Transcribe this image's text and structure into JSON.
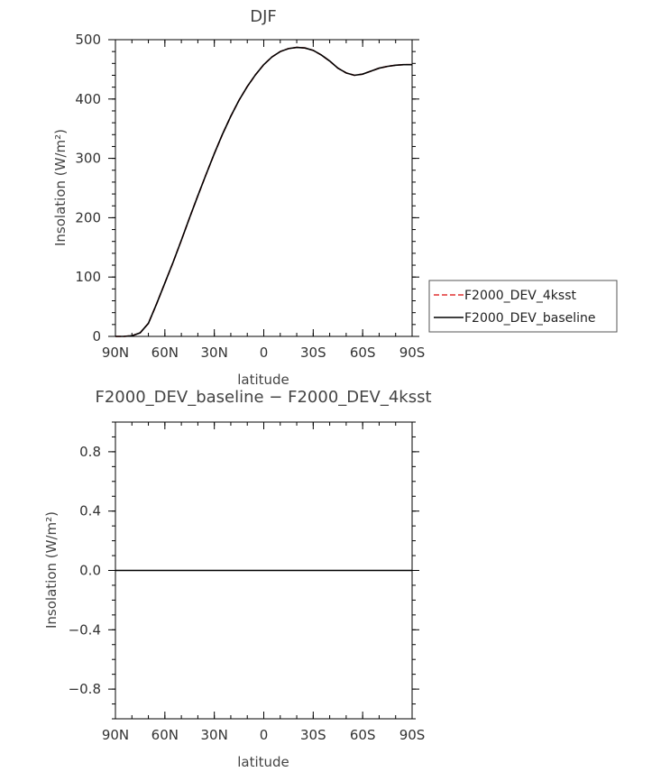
{
  "chart_data": [
    {
      "type": "line",
      "title": "DJF",
      "xlabel": "latitude",
      "ylabel": "Insolation (W/m²)",
      "xlim": [
        90,
        -90
      ],
      "ylim": [
        0,
        500
      ],
      "x_tick_values": [
        90,
        60,
        30,
        0,
        -30,
        -60,
        -90
      ],
      "x_tick_labels": [
        "90N",
        "60N",
        "30N",
        "0",
        "30S",
        "60S",
        "90S"
      ],
      "y_tick_values": [
        0,
        100,
        200,
        300,
        400,
        500
      ],
      "y_tick_labels": [
        "0",
        "100",
        "200",
        "300",
        "400",
        "500"
      ],
      "grid": false,
      "legend_position": "right",
      "x": [
        90,
        85,
        80,
        75,
        70,
        65,
        60,
        55,
        50,
        45,
        40,
        35,
        30,
        25,
        20,
        15,
        10,
        5,
        0,
        -5,
        -10,
        -15,
        -20,
        -25,
        -30,
        -35,
        -40,
        -45,
        -50,
        -55,
        -60,
        -65,
        -70,
        -75,
        -80,
        -85,
        -90
      ],
      "series": [
        {
          "name": "F2000_DEV_4ksst",
          "color": "#e03030",
          "dash": "dashed",
          "values": [
            0,
            0,
            1,
            6,
            22,
            55,
            90,
            125,
            162,
            200,
            237,
            273,
            308,
            341,
            371,
            398,
            421,
            441,
            458,
            471,
            480,
            485,
            487,
            486,
            482,
            474,
            464,
            452,
            444,
            440,
            442,
            447,
            452,
            455,
            457,
            458,
            458
          ]
        },
        {
          "name": "F2000_DEV_baseline",
          "color": "#000000",
          "dash": "solid",
          "values": [
            0,
            0,
            1,
            6,
            22,
            55,
            90,
            125,
            162,
            200,
            237,
            273,
            308,
            341,
            371,
            398,
            421,
            441,
            458,
            471,
            480,
            485,
            487,
            486,
            482,
            474,
            464,
            452,
            444,
            440,
            442,
            447,
            452,
            455,
            457,
            458,
            458
          ]
        }
      ]
    },
    {
      "type": "line",
      "title": "F2000_DEV_baseline − F2000_DEV_4ksst",
      "xlabel": "latitude",
      "ylabel": "Insolation (W/m²)",
      "xlim": [
        90,
        -90
      ],
      "ylim": [
        -1,
        1
      ],
      "x_tick_values": [
        90,
        60,
        30,
        0,
        -30,
        -60,
        -90
      ],
      "x_tick_labels": [
        "90N",
        "60N",
        "30N",
        "0",
        "30S",
        "60S",
        "90S"
      ],
      "y_tick_values": [
        -0.8,
        -0.4,
        0.0,
        0.4,
        0.8
      ],
      "y_tick_labels": [
        "−0.8",
        "−0.4",
        "0.0",
        "0.4",
        "0.8"
      ],
      "grid": false,
      "x": [
        90,
        -90
      ],
      "series": [
        {
          "color": "#000000",
          "dash": "solid",
          "values": [
            0,
            0
          ]
        }
      ]
    }
  ]
}
